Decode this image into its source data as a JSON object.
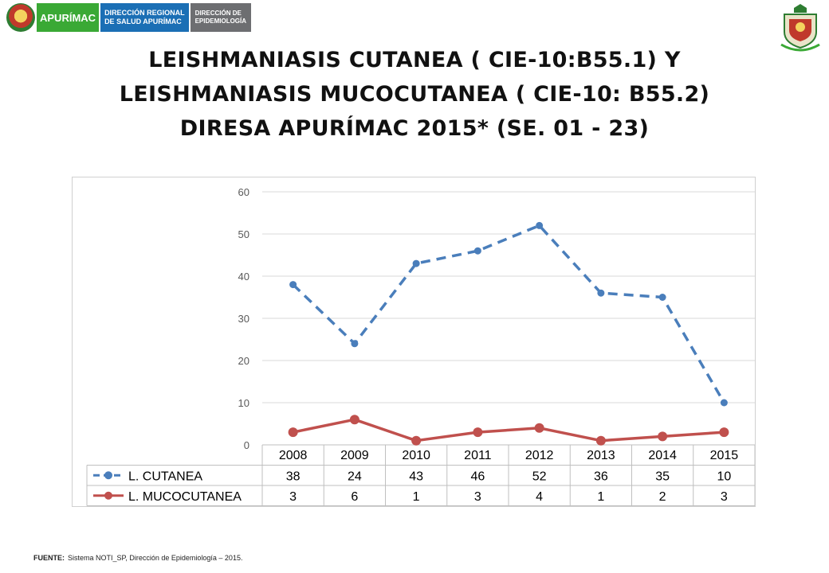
{
  "header": {
    "logo_text_apurimac": "APURÍMAC",
    "logo_text_diresa_line1": "DIRECCIÓN REGIONAL",
    "logo_text_diresa_line2": "DE SALUD APURÍMAC",
    "logo_text_epi_line1": "DIRECCIÓN DE",
    "logo_text_epi_line2": "EPIDEMIOLOGÍA"
  },
  "title": {
    "line1": "LEISHMANIASIS CUTANEA ( CIE-10:B55.1) Y",
    "line2": "LEISHMANIASIS MUCOCUTANEA ( CIE-10: B55.2)",
    "line3": "DIRESA APURÍMAC 2015* (SE. 01 - 23)"
  },
  "chart_data": {
    "type": "line",
    "title": "",
    "xlabel": "",
    "ylabel": "",
    "categories": [
      "2008",
      "2009",
      "2010",
      "2011",
      "2012",
      "2013",
      "2014",
      "2015"
    ],
    "series": [
      {
        "name": "L. CUTANEA",
        "values": [
          38,
          24,
          43,
          46,
          52,
          36,
          35,
          10
        ],
        "color": "#4a7ebb",
        "style": "dashed"
      },
      {
        "name": "L. MUCOCUTANEA",
        "values": [
          3,
          6,
          1,
          3,
          4,
          1,
          2,
          3
        ],
        "color": "#c0504d",
        "style": "solid"
      }
    ],
    "ylim": [
      0,
      60
    ],
    "yticks": [
      0,
      10,
      20,
      30,
      40,
      50,
      60
    ],
    "grid": true,
    "legend": "data-table-below"
  },
  "footer": {
    "label": "FUENTE:",
    "text": "Sistema NOTI_SP, Dirección de Epidemiología – 2015."
  }
}
